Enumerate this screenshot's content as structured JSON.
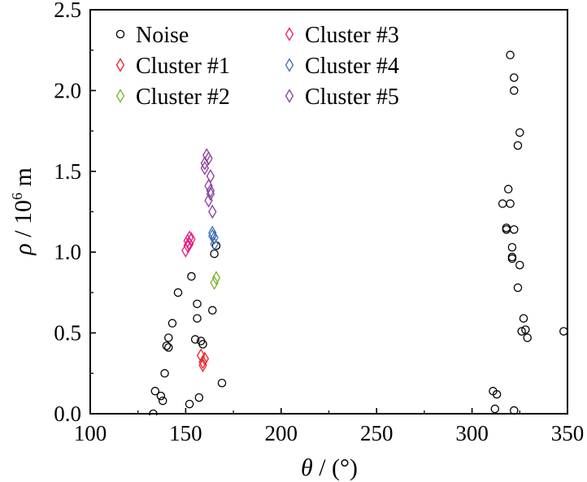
{
  "chart_data": {
    "type": "scatter",
    "xlabel": "θ / (°)",
    "xlabel_symbol": "θ",
    "xlabel_unit": " / (°)",
    "ylabel": "ρ / 10⁶ m",
    "ylabel_symbol": "ρ",
    "ylabel_unit_prefix": " / 10",
    "ylabel_unit_exp": "6",
    "ylabel_unit_suffix": " m",
    "xlim": [
      100,
      350
    ],
    "ylim": [
      0,
      2.5
    ],
    "xticks": [
      100,
      150,
      200,
      250,
      300,
      350
    ],
    "yticks": [
      0,
      0.5,
      1,
      1.5,
      2,
      2.5
    ],
    "xtick_labels": [
      "100",
      "150",
      "200",
      "250",
      "300",
      "350"
    ],
    "ytick_labels": [
      "0.0",
      "0.5",
      "1.0",
      "1.5",
      "2.0",
      "2.5"
    ],
    "grid": false,
    "legend_position": "top-left",
    "series": [
      {
        "name": "Noise",
        "marker": "circle",
        "color": "#000000",
        "points": [
          [
            133,
            0.0
          ],
          [
            134,
            0.14
          ],
          [
            137,
            0.11
          ],
          [
            138,
            0.08
          ],
          [
            139,
            0.25
          ],
          [
            140,
            0.42
          ],
          [
            141,
            0.47
          ],
          [
            141,
            0.41
          ],
          [
            143,
            0.56
          ],
          [
            146,
            0.75
          ],
          [
            152,
            0.06
          ],
          [
            153,
            0.85
          ],
          [
            155,
            0.46
          ],
          [
            156,
            0.59
          ],
          [
            156,
            0.68
          ],
          [
            157,
            0.1
          ],
          [
            158,
            0.45
          ],
          [
            159,
            0.43
          ],
          [
            164,
            0.64
          ],
          [
            165,
            0.99
          ],
          [
            166,
            1.04
          ],
          [
            169,
            0.19
          ],
          [
            311,
            0.14
          ],
          [
            312,
            0.03
          ],
          [
            313,
            0.12
          ],
          [
            316,
            1.3
          ],
          [
            318,
            1.15
          ],
          [
            318,
            1.14
          ],
          [
            319,
            1.39
          ],
          [
            320,
            1.3
          ],
          [
            320,
            2.22
          ],
          [
            321,
            0.97
          ],
          [
            321,
            1.03
          ],
          [
            321,
            0.96
          ],
          [
            322,
            2.08
          ],
          [
            322,
            2.0
          ],
          [
            322,
            1.14
          ],
          [
            322,
            0.02
          ],
          [
            324,
            1.66
          ],
          [
            324,
            0.78
          ],
          [
            325,
            1.74
          ],
          [
            325,
            0.92
          ],
          [
            326,
            0.51
          ],
          [
            327,
            0.59
          ],
          [
            328,
            0.52
          ],
          [
            329,
            0.47
          ],
          [
            348,
            0.51
          ]
        ]
      },
      {
        "name": "Cluster #1",
        "marker": "diamond",
        "color": "#e8202a",
        "points": [
          [
            158,
            0.36
          ],
          [
            159,
            0.32
          ],
          [
            159,
            0.3
          ],
          [
            160,
            0.34
          ]
        ]
      },
      {
        "name": "Cluster #2",
        "marker": "diamond",
        "color": "#7ab32e",
        "points": [
          [
            165,
            0.81
          ],
          [
            166,
            0.84
          ]
        ]
      },
      {
        "name": "Cluster #3",
        "marker": "diamond",
        "color": "#e8197d",
        "points": [
          [
            150,
            1.01
          ],
          [
            151,
            1.04
          ],
          [
            151,
            1.07
          ],
          [
            152,
            1.05
          ],
          [
            152,
            1.09
          ],
          [
            153,
            1.08
          ]
        ]
      },
      {
        "name": "Cluster #4",
        "marker": "diamond",
        "color": "#3d6fb6",
        "points": [
          [
            164,
            1.12
          ],
          [
            164,
            1.1
          ],
          [
            165,
            1.09
          ],
          [
            165,
            1.05
          ]
        ]
      },
      {
        "name": "Cluster #5",
        "marker": "diamond",
        "color": "#8b3d9e",
        "points": [
          [
            160,
            1.52
          ],
          [
            160,
            1.55
          ],
          [
            161,
            1.6
          ],
          [
            162,
            1.58
          ],
          [
            162,
            1.41
          ],
          [
            162,
            1.32
          ],
          [
            163,
            1.47
          ],
          [
            163,
            1.36
          ],
          [
            163,
            1.38
          ],
          [
            164,
            1.25
          ]
        ]
      }
    ]
  }
}
